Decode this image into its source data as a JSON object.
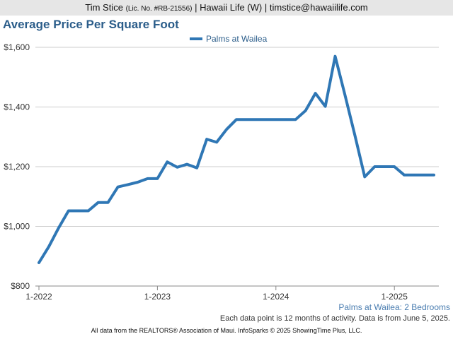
{
  "header": {
    "agent_name": "Tim Stice",
    "license": "(Lic. No. #RB-21556)",
    "company": "| Hawaii Life (W) |",
    "email": "timstice@hawaiilife.com"
  },
  "colors": {
    "line": "#2f77b5",
    "title": "#2b5d8a",
    "grid": "#cccccc"
  },
  "chart_data": {
    "type": "line",
    "title": "Average Price Per Square Foot",
    "subtitle": "Palms at Wailea: 2 Bedrooms",
    "xlabel": "",
    "ylabel": "",
    "ylim": [
      800,
      1600
    ],
    "y_ticks": [
      800,
      1000,
      1200,
      1400,
      1600
    ],
    "y_tick_labels": [
      "$800",
      "$1,000",
      "$1,200",
      "$1,400",
      "$1,600"
    ],
    "xlim": [
      "2022-01",
      "2025-05"
    ],
    "x_ticks": [
      "2022-01",
      "2023-01",
      "2024-01",
      "2025-01"
    ],
    "x_tick_labels": [
      "1-2022",
      "1-2023",
      "1-2024",
      "1-2025"
    ],
    "grid": true,
    "legend_position": "top-center",
    "series": [
      {
        "name": "Palms at Wailea",
        "points": [
          [
            "2022-01",
            878
          ],
          [
            "2022-02",
            932
          ],
          [
            "2022-03",
            995
          ],
          [
            "2022-04",
            1052
          ],
          [
            "2022-05",
            1052
          ],
          [
            "2022-06",
            1052
          ],
          [
            "2022-07",
            1080
          ],
          [
            "2022-08",
            1080
          ],
          [
            "2022-09",
            1132
          ],
          [
            "2022-10",
            1140
          ],
          [
            "2022-11",
            1148
          ],
          [
            "2022-12",
            1160
          ],
          [
            "2023-01",
            1160
          ],
          [
            "2023-02",
            1216
          ],
          [
            "2023-03",
            1198
          ],
          [
            "2023-04",
            1208
          ],
          [
            "2023-05",
            1196
          ],
          [
            "2023-06",
            1292
          ],
          [
            "2023-07",
            1282
          ],
          [
            "2023-08",
            1325
          ],
          [
            "2023-09",
            1358
          ],
          [
            "2023-10",
            1358
          ],
          [
            "2023-11",
            1358
          ],
          [
            "2023-12",
            1358
          ],
          [
            "2024-01",
            1358
          ],
          [
            "2024-02",
            1358
          ],
          [
            "2024-03",
            1358
          ],
          [
            "2024-04",
            1388
          ],
          [
            "2024-05",
            1446
          ],
          [
            "2024-06",
            1402
          ],
          [
            "2024-07",
            1570
          ],
          [
            "2024-08",
            1440
          ],
          [
            "2024-09",
            1305
          ],
          [
            "2024-10",
            1166
          ],
          [
            "2024-11",
            1200
          ],
          [
            "2024-12",
            1200
          ],
          [
            "2025-01",
            1200
          ],
          [
            "2025-02",
            1172
          ],
          [
            "2025-03",
            1172
          ],
          [
            "2025-04",
            1172
          ],
          [
            "2025-05",
            1172
          ]
        ]
      }
    ]
  },
  "notes": {
    "data_note": "Each data point is 12 months of activity. Data is from June 5, 2025.",
    "footer": "All data from the REALTORS® Association of Maui. InfoSparks © 2025 ShowingTime Plus, LLC."
  }
}
